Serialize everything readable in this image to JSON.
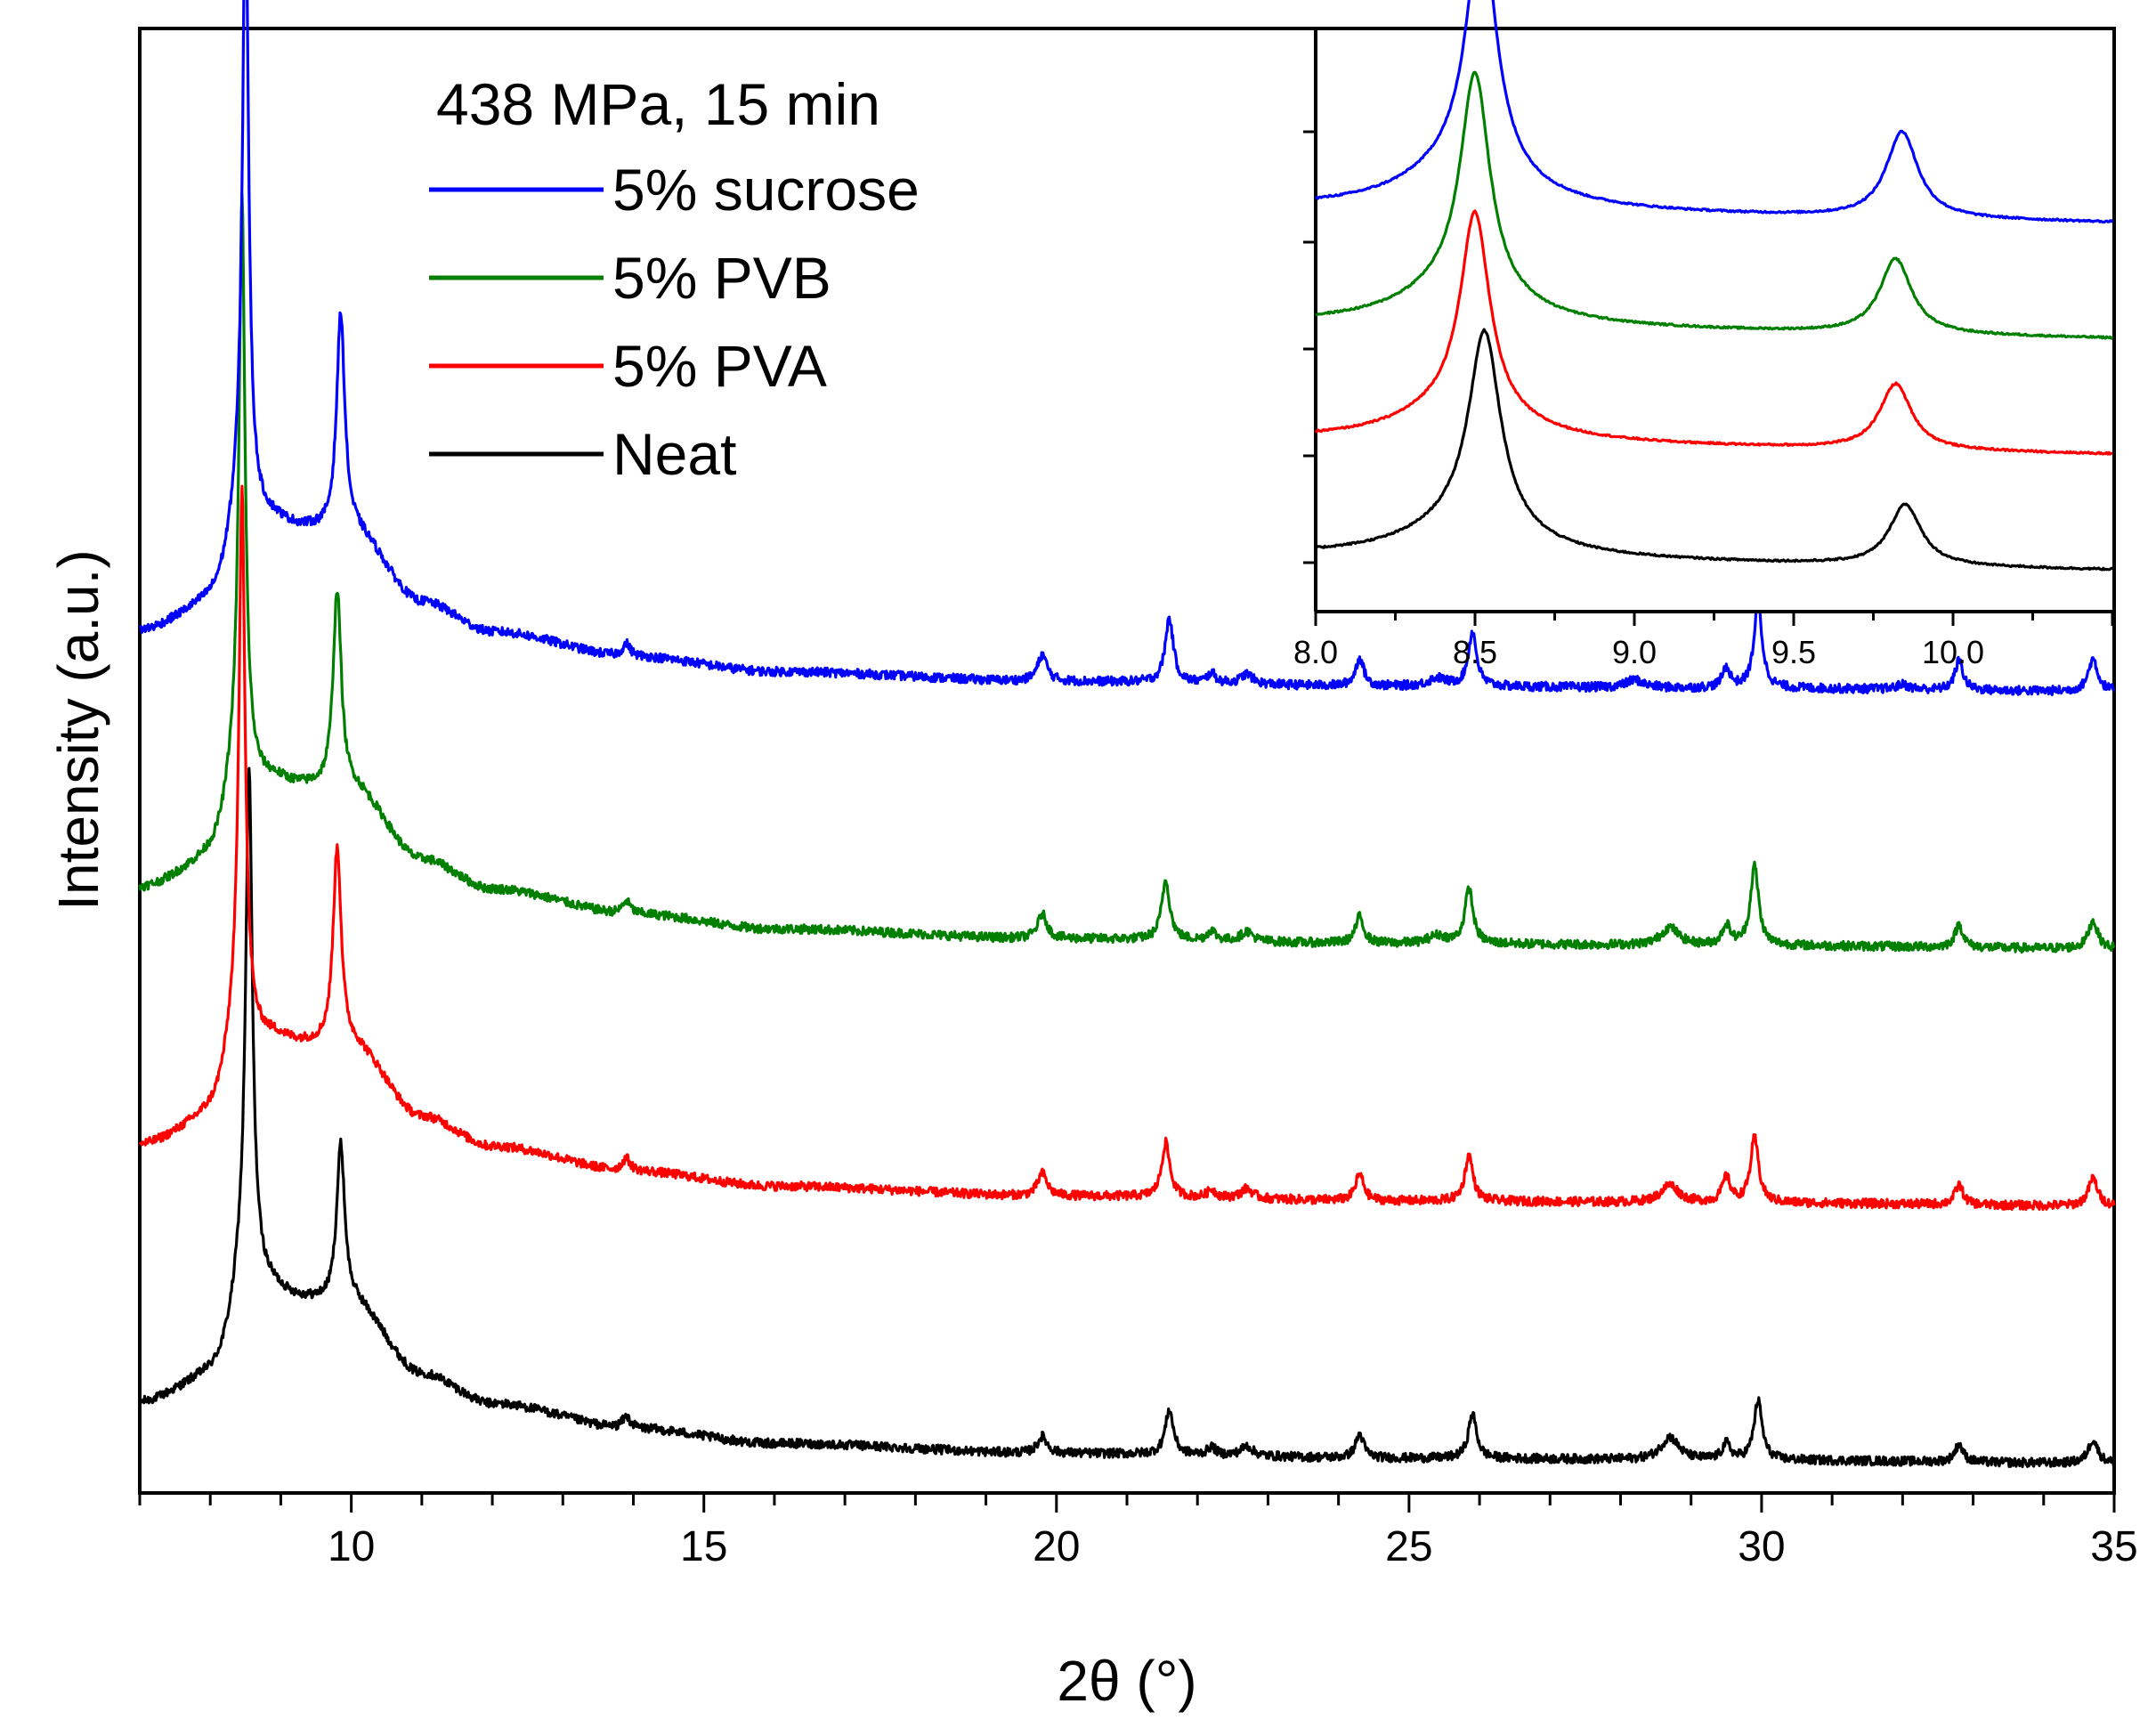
{
  "chart_data": {
    "type": "line",
    "title": "438 MPa, 15 min",
    "xlabel": "2θ (°)",
    "ylabel": "Intensity (a.u.)",
    "xlim": [
      7,
      35
    ],
    "x_ticks": [
      "10",
      "15",
      "20",
      "25",
      "30",
      "35"
    ],
    "y_ticks_shown": false,
    "grid": false,
    "legend_position": "top-center",
    "series": [
      {
        "name": "5% sucrose",
        "color": "#0000ff",
        "offset": 78,
        "baseline": [
          [
            7,
            6
          ],
          [
            8,
            8
          ],
          [
            9,
            16
          ],
          [
            10,
            16
          ],
          [
            11,
            9
          ],
          [
            12,
            6
          ],
          [
            14,
            3.5
          ],
          [
            16,
            2
          ],
          [
            20,
            1
          ],
          [
            25,
            0.5
          ],
          [
            30,
            0.3
          ],
          [
            35,
            0
          ]
        ],
        "peaks": [
          [
            8.5,
            60,
            0.05
          ],
          [
            8.45,
            10,
            0.22
          ],
          [
            9.85,
            22,
            0.07
          ],
          [
            13.9,
            1.3,
            0.07
          ],
          [
            19.8,
            2.7,
            0.08
          ],
          [
            21.6,
            6.5,
            0.07
          ],
          [
            22.2,
            1.0,
            0.07
          ],
          [
            22.7,
            1.0,
            0.1
          ],
          [
            24.3,
            2.8,
            0.07
          ],
          [
            25.4,
            0.8,
            0.15
          ],
          [
            25.9,
            5.5,
            0.07
          ],
          [
            28.2,
            0.8,
            0.15
          ],
          [
            29.5,
            2.0,
            0.07
          ],
          [
            29.95,
            8.5,
            0.07
          ],
          [
            32,
            0.5,
            0.1
          ],
          [
            32.8,
            3,
            0.07
          ],
          [
            34.7,
            3.3,
            0.08
          ]
        ]
      },
      {
        "name": "5% PVB",
        "color": "#007f00",
        "offset": 52,
        "baseline": [
          [
            7,
            6
          ],
          [
            8,
            8
          ],
          [
            9,
            16
          ],
          [
            10,
            16
          ],
          [
            11,
            9
          ],
          [
            12,
            6
          ],
          [
            14,
            3.5
          ],
          [
            16,
            2
          ],
          [
            20,
            1
          ],
          [
            25,
            0.5
          ],
          [
            30,
            0.3
          ],
          [
            35,
            0
          ]
        ],
        "peaks": [
          [
            8.45,
            55,
            0.05
          ],
          [
            8.4,
            10,
            0.22
          ],
          [
            9.8,
            20,
            0.07
          ],
          [
            13.9,
            1.3,
            0.07
          ],
          [
            19.8,
            2.5,
            0.08
          ],
          [
            21.55,
            6,
            0.07
          ],
          [
            22.2,
            1.0,
            0.07
          ],
          [
            22.7,
            1.0,
            0.1
          ],
          [
            24.3,
            2.7,
            0.07
          ],
          [
            25.4,
            0.8,
            0.15
          ],
          [
            25.85,
            5.5,
            0.07
          ],
          [
            28.7,
            1.8,
            0.15
          ],
          [
            29.5,
            2.0,
            0.07
          ],
          [
            29.9,
            8.0,
            0.07
          ],
          [
            32.8,
            2.3,
            0.07
          ],
          [
            34.7,
            2.8,
            0.08
          ]
        ]
      },
      {
        "name": "5% PVA",
        "color": "#ff0000",
        "offset": 26,
        "baseline": [
          [
            7,
            6
          ],
          [
            8,
            8
          ],
          [
            9,
            16
          ],
          [
            10,
            16
          ],
          [
            11,
            9
          ],
          [
            12,
            6
          ],
          [
            14,
            3.5
          ],
          [
            16,
            2
          ],
          [
            20,
            1
          ],
          [
            25,
            0.5
          ],
          [
            30,
            0.3
          ],
          [
            35,
            0
          ]
        ],
        "peaks": [
          [
            8.45,
            52,
            0.05
          ],
          [
            8.4,
            10,
            0.22
          ],
          [
            9.8,
            20,
            0.07
          ],
          [
            13.9,
            1.3,
            0.07
          ],
          [
            19.8,
            2.3,
            0.08
          ],
          [
            21.55,
            5.5,
            0.07
          ],
          [
            22.2,
            0.8,
            0.07
          ],
          [
            22.7,
            1.0,
            0.1
          ],
          [
            24.3,
            2.7,
            0.07
          ],
          [
            25.85,
            4.6,
            0.07
          ],
          [
            28.7,
            1.8,
            0.15
          ],
          [
            29.5,
            2.5,
            0.07
          ],
          [
            29.9,
            6.5,
            0.07
          ],
          [
            32.8,
            2.0,
            0.07
          ],
          [
            34.7,
            2.8,
            0.08
          ]
        ]
      },
      {
        "name": "Neat",
        "color": "#000000",
        "offset": 0,
        "baseline": [
          [
            7,
            6
          ],
          [
            8,
            8
          ],
          [
            9,
            16
          ],
          [
            10,
            16
          ],
          [
            11,
            9
          ],
          [
            12,
            6
          ],
          [
            14,
            3.5
          ],
          [
            16,
            2
          ],
          [
            20,
            1
          ],
          [
            25,
            0.5
          ],
          [
            30,
            0.3
          ],
          [
            35,
            0
          ]
        ],
        "peaks": [
          [
            8.55,
            48,
            0.055
          ],
          [
            8.5,
            10,
            0.22
          ],
          [
            9.85,
            16,
            0.07
          ],
          [
            13.9,
            1.2,
            0.07
          ],
          [
            19.8,
            1.7,
            0.08
          ],
          [
            21.6,
            4.5,
            0.07
          ],
          [
            22.2,
            0.8,
            0.07
          ],
          [
            22.7,
            1.0,
            0.1
          ],
          [
            24.3,
            2.4,
            0.07
          ],
          [
            25.9,
            4.5,
            0.07
          ],
          [
            28.7,
            2.3,
            0.15
          ],
          [
            29.5,
            1.6,
            0.07
          ],
          [
            29.95,
            6,
            0.07
          ],
          [
            32.8,
            1.8,
            0.07
          ],
          [
            34.7,
            2.4,
            0.08
          ]
        ]
      }
    ],
    "inset": {
      "xlim": [
        8.0,
        10.5
      ],
      "x_ticks": [
        "8.0",
        "8.5",
        "9.0",
        "9.5",
        "10.0"
      ],
      "series": [
        {
          "name": "5% sucrose",
          "color": "#0000ff",
          "base": 153,
          "peak1": [
            8.52,
            110,
            0.055
          ],
          "peak2": [
            9.84,
            38,
            0.06
          ]
        },
        {
          "name": "5% PVB",
          "color": "#007f00",
          "base": 102,
          "peak1": [
            8.5,
            96,
            0.055
          ],
          "peak2": [
            9.82,
            33,
            0.06
          ]
        },
        {
          "name": "5% PVA",
          "color": "#ff0000",
          "base": 51,
          "peak1": [
            8.5,
            87,
            0.055
          ],
          "peak2": [
            9.82,
            29,
            0.06
          ]
        },
        {
          "name": "Neat",
          "color": "#000000",
          "base": 0,
          "peak1": [
            8.53,
            86,
            0.06
          ],
          "peak2": [
            9.85,
            27,
            0.06
          ]
        }
      ]
    }
  }
}
